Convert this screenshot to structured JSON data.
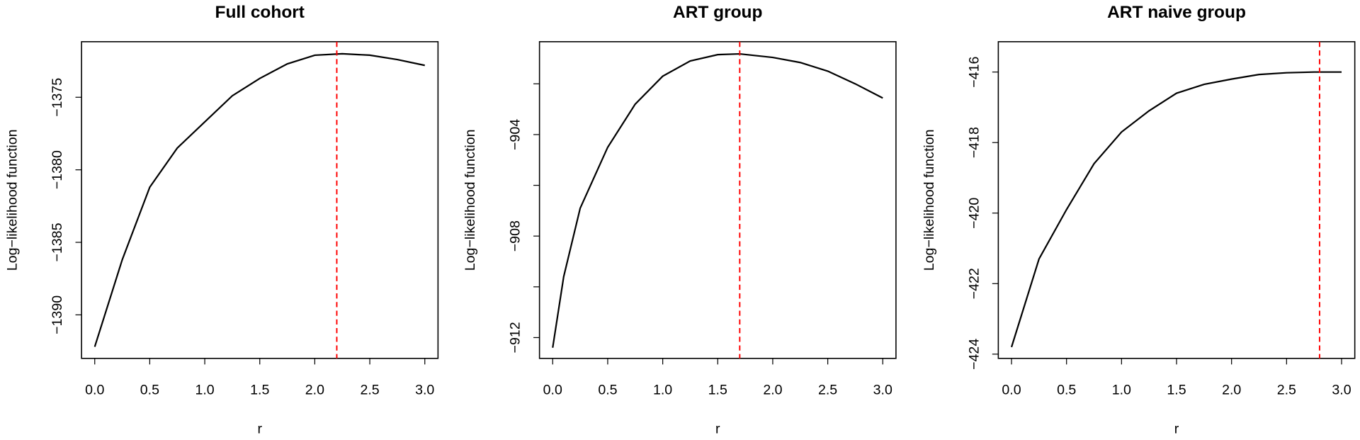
{
  "chart_data": [
    {
      "type": "line",
      "title": "Full cohort",
      "x_label": "r",
      "y_label": "Log−likelihood function",
      "x": [
        0,
        0.25,
        0.5,
        0.75,
        1.0,
        1.25,
        1.5,
        1.75,
        2.0,
        2.25,
        2.5,
        2.75,
        3.0
      ],
      "series": [
        {
          "color": "#000000",
          "values": [
            -1392.2,
            -1386.2,
            -1381.2,
            -1378.5,
            -1376.7,
            -1374.9,
            -1373.7,
            -1372.7,
            -1372.1,
            -1372.0,
            -1372.1,
            -1372.4,
            -1372.8
          ]
        }
      ],
      "vline": 2.2,
      "vline_color": "#ff0000",
      "xlim": [
        -0.12,
        3.12
      ],
      "xticks": [
        {
          "value": 0,
          "label": "0.0"
        },
        0.5,
        {
          "value": 1,
          "label": "1.0"
        },
        1.5,
        {
          "value": 2,
          "label": "2.0"
        },
        2.5,
        {
          "value": 3,
          "label": "3.0"
        }
      ],
      "ylim": [
        -1393.0,
        -1371.17
      ],
      "yticks": [
        {
          "value": -1390,
          "label": "−1390"
        },
        {
          "value": -1385,
          "label": "−1385"
        },
        {
          "value": -1380,
          "label": "−1380"
        },
        {
          "value": -1375,
          "label": "−1375"
        }
      ]
    },
    {
      "type": "line",
      "title": "ART group",
      "x_label": "r",
      "y_label": "Log−likelihood function",
      "x": [
        0,
        0.1,
        0.25,
        0.5,
        0.75,
        1.0,
        1.25,
        1.5,
        1.7,
        2.0,
        2.25,
        2.5,
        2.75,
        3.0
      ],
      "series": [
        {
          "color": "#000000",
          "values": [
            -912.4,
            -909.6,
            -906.9,
            -904.5,
            -902.8,
            -901.7,
            -901.1,
            -900.85,
            -900.82,
            -900.96,
            -901.16,
            -901.5,
            -902.0,
            -902.56
          ]
        }
      ],
      "vline": 1.7,
      "vline_color": "#ff0000",
      "xlim": [
        -0.12,
        3.12
      ],
      "xticks": [
        {
          "value": 0,
          "label": "0.0"
        },
        0.5,
        {
          "value": 1,
          "label": "1.0"
        },
        1.5,
        {
          "value": 2,
          "label": "2.0"
        },
        2.5,
        {
          "value": 3,
          "label": "3.0"
        }
      ],
      "ylim": [
        -912.82,
        -900.34
      ],
      "yticks": [
        {
          "value": -912,
          "label": "−912"
        },
        {
          "value": -910,
          "label": null
        },
        {
          "value": -908,
          "label": "−908"
        },
        {
          "value": -906,
          "label": null
        },
        {
          "value": -904,
          "label": "−904"
        },
        {
          "value": -902,
          "label": null
        }
      ]
    },
    {
      "type": "line",
      "title": "ART naive group",
      "x_label": "r",
      "y_label": "Log−likelihood function",
      "x": [
        0,
        0.25,
        0.5,
        0.75,
        1.0,
        1.25,
        1.5,
        1.75,
        2.0,
        2.25,
        2.5,
        2.75,
        3.0
      ],
      "series": [
        {
          "color": "#000000",
          "values": [
            -423.8,
            -421.3,
            -419.9,
            -418.6,
            -417.7,
            -417.1,
            -416.6,
            -416.35,
            -416.2,
            -416.07,
            -416.02,
            -416.0,
            -416.0
          ]
        }
      ],
      "vline": 2.8,
      "vline_color": "#ff0000",
      "xlim": [
        -0.12,
        3.12
      ],
      "xticks": [
        {
          "value": 0,
          "label": "0.0"
        },
        0.5,
        {
          "value": 1,
          "label": "1.0"
        },
        1.5,
        {
          "value": 2,
          "label": "2.0"
        },
        2.5,
        {
          "value": 3,
          "label": "3.0"
        }
      ],
      "ylim": [
        -424.12,
        -415.14
      ],
      "yticks": [
        {
          "value": -424,
          "label": "−424"
        },
        {
          "value": -422,
          "label": "−422"
        },
        {
          "value": -420,
          "label": "−420"
        },
        {
          "value": -418,
          "label": "−418"
        },
        {
          "value": -416,
          "label": "−416"
        }
      ]
    }
  ]
}
